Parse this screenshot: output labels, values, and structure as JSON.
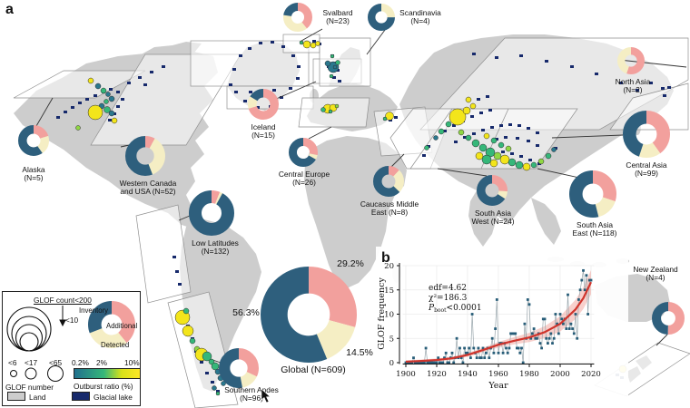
{
  "figure": {
    "panel_a_label": "a",
    "panel_b_label": "b"
  },
  "colors": {
    "inventory": "#2e5f7d",
    "additional": "#f2a09d",
    "detected": "#f5eec4",
    "glacial_lake": "#16296b",
    "land": "#cdcdcd",
    "trend_line": "#d0342c",
    "trend_band": "rgba(235,120,110,0.35)",
    "data_point": "#275d78",
    "ratio_scale": [
      "#21708e",
      "#35b779",
      "#d8e219",
      "#fde725"
    ]
  },
  "chart_data": [
    {
      "type": "pie",
      "subtype": "regional-donuts",
      "slice_order": [
        "additional",
        "detected",
        "inventory"
      ],
      "regions": [
        {
          "id": "alaska",
          "label_lines": [
            "Alaska",
            "(N=5)"
          ],
          "n": 5,
          "additional": 20,
          "detected": 20,
          "inventory": 60
        },
        {
          "id": "wcanada",
          "label_lines": [
            "Western Canada",
            "and USA (N=52)"
          ],
          "n": 52,
          "additional": 8,
          "detected": 36,
          "inventory": 56
        },
        {
          "id": "iceland",
          "label_lines": [
            "Iceland",
            "(N=15)"
          ],
          "n": 15,
          "additional": 70,
          "detected": 13,
          "inventory": 17
        },
        {
          "id": "svalbard",
          "label_lines": [
            "Svalbard",
            "(N=23)"
          ],
          "n": 23,
          "additional": 39,
          "detected": 38,
          "inventory": 23
        },
        {
          "id": "scandinavia",
          "label_lines": [
            "Scandinavia",
            "(N=4)"
          ],
          "n": 4,
          "additional": 0,
          "detected": 25,
          "inventory": 75
        },
        {
          "id": "nasia",
          "label_lines": [
            "North Asia",
            "(N=2)"
          ],
          "n": 2,
          "additional": 55,
          "detected": 45,
          "inventory": 0
        },
        {
          "id": "ceurope",
          "label_lines": [
            "Central Europe",
            "(N=26)"
          ],
          "n": 26,
          "additional": 28,
          "detected": 5,
          "inventory": 67
        },
        {
          "id": "caucasus",
          "label_lines": [
            "Caucasus Middle",
            "East (N=8)"
          ],
          "n": 8,
          "additional": 12,
          "detected": 25,
          "inventory": 63
        },
        {
          "id": "casia",
          "label_lines": [
            "Central Asia",
            "(N=99)"
          ],
          "n": 99,
          "additional": 40,
          "detected": 15,
          "inventory": 45
        },
        {
          "id": "sasiaw",
          "label_lines": [
            "South Asia",
            "West (N=24)"
          ],
          "n": 24,
          "additional": 26,
          "detected": 8,
          "inventory": 66
        },
        {
          "id": "sasiae",
          "label_lines": [
            "South Asia",
            "East (N=118)"
          ],
          "n": 118,
          "additional": 30,
          "detected": 16,
          "inventory": 54
        },
        {
          "id": "lowlat",
          "label_lines": [
            "Low Latitudes",
            "(N=132)"
          ],
          "n": 132,
          "additional": 6,
          "detected": 2,
          "inventory": 92
        },
        {
          "id": "sandes",
          "label_lines": [
            "Southern Andes",
            "(N=96)"
          ],
          "n": 96,
          "additional": 32,
          "detected": 15,
          "inventory": 53
        },
        {
          "id": "nz",
          "label_lines": [
            "New Zealand",
            "(N=4)"
          ],
          "n": 4,
          "additional": 50,
          "detected": 0,
          "inventory": 50
        },
        {
          "id": "global",
          "label_lines": [
            "Global (N=609)"
          ],
          "n": 609,
          "additional": 29.2,
          "detected": 14.5,
          "inventory": 56.3,
          "pct_labels": {
            "additional": "29.2%",
            "detected": "14.5%",
            "inventory": "56.3%"
          }
        }
      ]
    },
    {
      "type": "line",
      "subtype": "scatter+trend",
      "xlabel": "Year",
      "ylabel": "GLOF frequency",
      "xlim": [
        1898,
        2022
      ],
      "ylim": [
        0,
        20
      ],
      "xticks": [
        1900,
        1920,
        1940,
        1960,
        1980,
        2000,
        2020
      ],
      "yticks": [
        0,
        5,
        10,
        15,
        20
      ],
      "grid": true,
      "stats": {
        "edf": "edf=4.62",
        "chi2": "χ²=186.3",
        "p_label": "P",
        "p_sub": "boot",
        "p_value": "<0.0001"
      },
      "years": [
        1900,
        1901,
        1902,
        1903,
        1904,
        1905,
        1906,
        1907,
        1908,
        1909,
        1910,
        1911,
        1912,
        1913,
        1914,
        1915,
        1916,
        1917,
        1918,
        1919,
        1920,
        1921,
        1922,
        1923,
        1924,
        1925,
        1926,
        1927,
        1928,
        1929,
        1930,
        1931,
        1932,
        1933,
        1934,
        1935,
        1936,
        1937,
        1938,
        1939,
        1940,
        1941,
        1942,
        1943,
        1944,
        1945,
        1946,
        1947,
        1948,
        1949,
        1950,
        1951,
        1952,
        1953,
        1954,
        1955,
        1956,
        1957,
        1958,
        1959,
        1960,
        1961,
        1962,
        1963,
        1964,
        1965,
        1966,
        1967,
        1968,
        1969,
        1970,
        1971,
        1972,
        1973,
        1974,
        1975,
        1976,
        1977,
        1978,
        1979,
        1980,
        1981,
        1982,
        1983,
        1984,
        1985,
        1986,
        1987,
        1988,
        1989,
        1990,
        1991,
        1992,
        1993,
        1994,
        1995,
        1996,
        1997,
        1998,
        1999,
        2000,
        2001,
        2002,
        2003,
        2004,
        2005,
        2006,
        2007,
        2008,
        2009,
        2010,
        2011,
        2012,
        2013,
        2014,
        2015,
        2016,
        2017,
        2018,
        2019,
        2020
      ],
      "values": [
        0,
        0,
        0,
        0,
        0,
        1,
        0,
        0,
        0,
        0,
        0,
        0,
        0,
        3,
        0,
        0,
        0,
        0,
        0,
        0,
        0,
        1,
        0,
        0,
        0,
        1,
        2,
        0,
        0,
        1,
        2,
        0,
        1,
        5,
        1,
        3,
        1,
        0,
        3,
        2,
        2,
        3,
        1,
        10,
        3,
        2,
        1,
        3,
        1,
        1,
        3,
        1,
        2,
        3,
        1,
        3,
        5,
        2,
        7,
        13,
        2,
        4,
        4,
        2,
        4,
        3,
        2,
        3,
        6,
        6,
        6,
        6,
        3,
        3,
        2,
        3,
        0,
        8,
        5,
        13,
        12,
        5,
        6,
        7,
        5,
        5,
        6,
        4,
        3,
        9,
        9,
        5,
        4,
        5,
        6,
        4,
        5,
        10,
        8,
        6,
        10,
        9,
        8,
        9,
        7,
        14,
        7,
        8,
        7,
        6,
        10,
        5,
        13,
        15,
        17,
        19,
        15,
        18,
        10,
        17,
        17
      ],
      "fit": [
        [
          1900,
          0.2
        ],
        [
          1910,
          0.35
        ],
        [
          1920,
          0.55
        ],
        [
          1930,
          0.9
        ],
        [
          1940,
          1.6
        ],
        [
          1950,
          2.6
        ],
        [
          1960,
          3.7
        ],
        [
          1970,
          4.5
        ],
        [
          1980,
          5.2
        ],
        [
          1990,
          6.3
        ],
        [
          2000,
          8.0
        ],
        [
          2010,
          11.0
        ],
        [
          2015,
          13.3
        ],
        [
          2020,
          16.6
        ]
      ]
    }
  ],
  "legend": {
    "count_title": "GLOF count<200",
    "count_min": "<10",
    "donut_labels": {
      "inventory": "Inventory",
      "additional": "Additional",
      "detected": "Detected"
    },
    "legend_donut": {
      "additional": 39,
      "detected": 30,
      "inventory": 31
    },
    "size_labels": [
      "<6",
      "<17",
      "<65"
    ],
    "size_caption": "GLOF number",
    "ratio_ticks": [
      "0.2%",
      "2%",
      "10%"
    ],
    "ratio_caption": "Outburst ratio (%)",
    "land_label": "Land",
    "lake_label": "Glacial lake"
  }
}
